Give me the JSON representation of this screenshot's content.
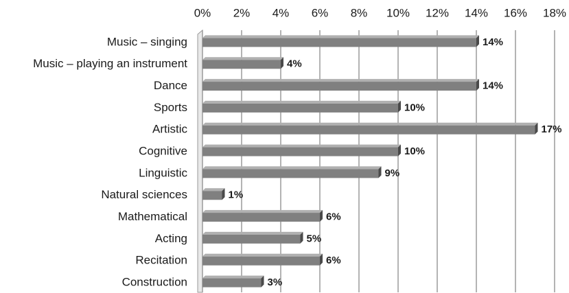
{
  "chart_data": {
    "type": "bar",
    "orientation": "horizontal",
    "categories": [
      "Music – singing",
      "Music – playing an instrument",
      "Dance",
      "Sports",
      "Artistic",
      "Cognitive",
      "Linguistic",
      "Natural sciences",
      "Mathematical",
      "Acting",
      "Recitation",
      "Construction"
    ],
    "values": [
      14,
      4,
      14,
      10,
      17,
      10,
      9,
      1,
      6,
      5,
      6,
      3
    ],
    "value_labels": [
      "14%",
      "4%",
      "14%",
      "10%",
      "17%",
      "10%",
      "9%",
      "1%",
      "6%",
      "5%",
      "6%",
      "3%"
    ],
    "color": "#808080",
    "xlim": [
      0,
      18
    ],
    "xticks": [
      {
        "value": 0,
        "label": "0%"
      },
      {
        "value": 2,
        "label": "2%"
      },
      {
        "value": 4,
        "label": "4%"
      },
      {
        "value": 6,
        "label": "6%"
      },
      {
        "value": 8,
        "label": "8%"
      },
      {
        "value": 10,
        "label": "10%"
      },
      {
        "value": 12,
        "label": "12%"
      },
      {
        "value": 14,
        "label": "14%"
      },
      {
        "value": 16,
        "label": "16%"
      },
      {
        "value": 18,
        "label": "18%"
      }
    ],
    "grid": true
  }
}
